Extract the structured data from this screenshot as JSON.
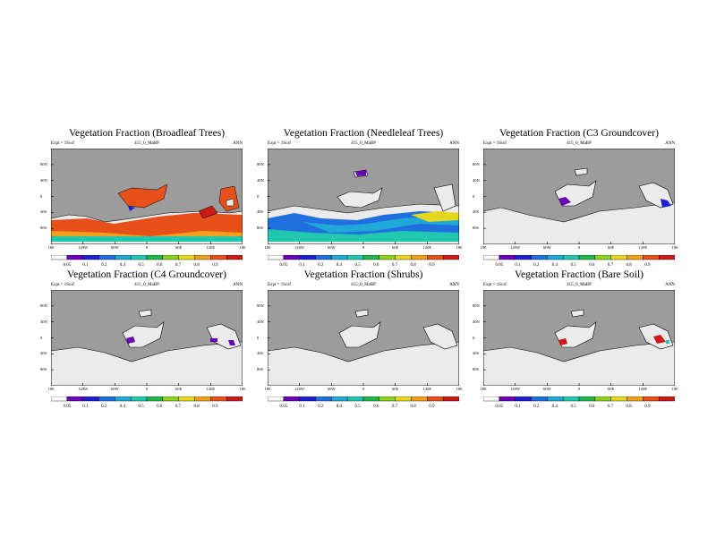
{
  "colorbar": {
    "labels": [
      "0.05",
      "0.1",
      "0.2",
      "0.4",
      "0.5",
      "0.6",
      "0.7",
      "0.8",
      "0.9"
    ],
    "colors": [
      "#ffffff",
      "#6a00b8",
      "#1f1fd6",
      "#1f6fe0",
      "#1fa8d8",
      "#20c8b0",
      "#1fb848",
      "#8cd21f",
      "#e6d61f",
      "#f0a01a",
      "#e8501a",
      "#cc1a1a"
    ]
  },
  "axes": {
    "lat_labels": [
      "80N",
      "40N",
      "0",
      "40S",
      "80S"
    ],
    "lon_labels": [
      "180",
      "120W",
      "60W",
      "0",
      "60E",
      "120E",
      "180"
    ]
  },
  "colors": {
    "ocean": "#9c9c9c",
    "land": "#ebebeb"
  },
  "panels": [
    {
      "title": "Vegetation Fraction (Broadleaf Trees)",
      "left": "Expt = 1Scsf",
      "center": "415_0_MaBP",
      "right": "ANN"
    },
    {
      "title": "Vegetation Fraction (Needleleaf Trees)",
      "left": "Expt = 1Scsf",
      "center": "415_0_MaBP",
      "right": "ANN"
    },
    {
      "title": "Vegetation Fraction (C3 Groundcover)",
      "left": "Expt = 1Scsf",
      "center": "415_0_MaBP",
      "right": "ANN"
    },
    {
      "title": "Vegetation Fraction (C4 Groundcover)",
      "left": "Expt = 1Scsf",
      "center": "415_0_MaBP",
      "right": "ANN"
    },
    {
      "title": "Vegetation Fraction (Shrubs)",
      "left": "Expt = 1Scsf",
      "center": "415_0_MaBP",
      "right": "ANN"
    },
    {
      "title": "Vegetation Fraction (Bare Soil)",
      "left": "Expt = 1Scsf",
      "center": "415_0_MaBP",
      "right": "ANN"
    }
  ]
}
